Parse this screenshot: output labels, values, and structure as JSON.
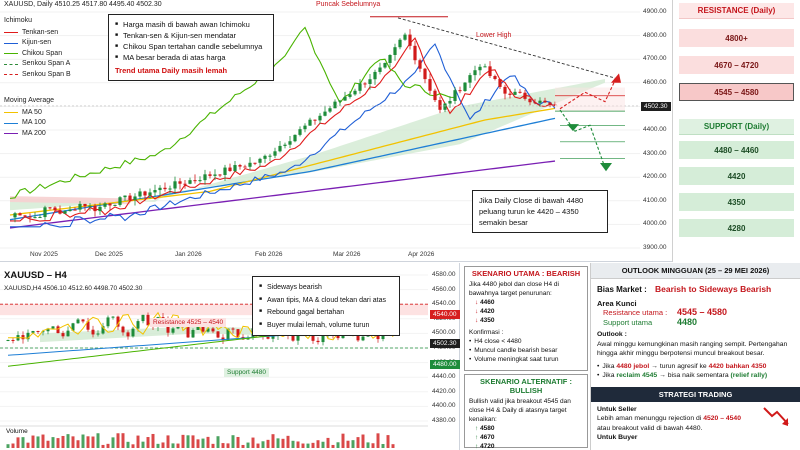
{
  "daily": {
    "header": "XAUUSD, Daily  4510.25  4517.80  4495.40  4502.30",
    "legend_ichimoku_title": "Ichimoku",
    "legend_ichimoku": [
      {
        "label": "Tenkan-sen",
        "color": "#e01b1b",
        "dash": false
      },
      {
        "label": "Kijun-sen",
        "color": "#1f5fd6",
        "dash": false
      },
      {
        "label": "Chikou Span",
        "color": "#49b300",
        "dash": false
      },
      {
        "label": "Senkou Span A",
        "color": "#2e8b3a",
        "dash": true
      },
      {
        "label": "Senkou Span B",
        "color": "#d61f1f",
        "dash": true
      }
    ],
    "legend_ma_title": "Moving Average",
    "legend_ma": [
      {
        "label": "MA 50",
        "color": "#f2c200",
        "dash": false
      },
      {
        "label": "MA 100",
        "color": "#1e7fd6",
        "dash": false
      },
      {
        "label": "MA 200",
        "color": "#7a1fb3",
        "dash": false
      }
    ],
    "notes": [
      "Harga masih di bawah awan Ichimoku",
      "Tenkan-sen & Kijun-sen mendatar",
      "Chikou Span tertahan candle sebelumnya",
      "MA besar berada di atas harga"
    ],
    "notes_trend": "Trend utama Daily masih lemah",
    "label_peak": "Puncak Sebelumnya",
    "label_lower_high": "Lower High",
    "warning": [
      "Jika Daily Close di bawah 4480",
      "peluang turun ke 4420 – 4350",
      "semakin besar"
    ],
    "y_ticks": [
      "4900.00",
      "4800.00",
      "4700.00",
      "4600.00",
      "4500.00",
      "4400.00",
      "4300.00",
      "4200.00",
      "4100.00",
      "4000.00",
      "3900.00"
    ],
    "x_ticks": [
      "Nov 2025",
      "Dec 2025",
      "Jan 2026",
      "Feb 2026",
      "Mar 2026",
      "Apr 2026"
    ],
    "price_tag": "4502.30"
  },
  "levels": {
    "resistance_title": "RESISTANCE (Daily)",
    "resistance": [
      "4800+",
      "4670 – 4720",
      "4545 – 4580"
    ],
    "support_title": "SUPPORT (Daily)",
    "support": [
      "4480 – 4460",
      "4420",
      "4350",
      "4280"
    ]
  },
  "h4": {
    "title": "XAUUSD – H4",
    "header": "XAUUSD,H4  4506.10  4512.60  4498.70  4502.30",
    "label_resistance": "Resistance 4525 – 4540",
    "label_support": "Support 4480",
    "notes": [
      "Sideways bearish",
      "Awan tipis, MA & cloud tekan dari atas",
      "Rebound gagal bertahan",
      "Buyer mulai lemah, volume turun"
    ],
    "y_ticks": [
      "4580.00",
      "4560.00",
      "4540.00",
      "4520.00",
      "4500.00",
      "4480.00",
      "4460.00",
      "4440.00",
      "4420.00",
      "4400.00",
      "4380.00"
    ],
    "tag_4540": "4540.00",
    "tag_price": "4502.30",
    "tag_4480": "4480.00",
    "volume_label": "Volume"
  },
  "scenario_main": {
    "title": "SKENARIO UTAMA : BEARISH",
    "desc": "Jika 4480 jebol dan close H4 di bawahnya target penurunan:",
    "targets": [
      "4460",
      "4420",
      "4350"
    ],
    "confirm_title": "Konfirmasi :",
    "confirm": [
      "H4 close < 4480",
      "Muncul candle bearish besar",
      "Volume meningkat saat turun"
    ]
  },
  "scenario_alt": {
    "title": "SKENARIO ALTERNATIF : BULLISH",
    "desc": "Bullish valid jika breakout 4545 dan close H4 & Daily di atasnya target kenaikan:",
    "targets": [
      "4580",
      "4670",
      "4720"
    ]
  },
  "outlook": {
    "title": "OUTLOOK MINGGUAN (25 – 29 MEI 2026)",
    "bias_label": "Bias Market :",
    "bias_value": "Bearish to Sideways Bearish",
    "kunci_label": "Area Kunci",
    "resist_label": "Resistance utama :",
    "resist_value": "4545 – 4580",
    "support_label": "Support utama",
    "support_value": "4480",
    "outlook_label": "Outlook :",
    "outlook_text": "Awal minggu kemungkinan masih ranging sempit. Pertengahan hingga akhir minggu berpotensi muncul breakout besar.",
    "bullet1_pre": "Jika ",
    "bullet1_key": "4480 jebol",
    "bullet1_mid": " → turun agresif ke ",
    "bullet1_end": "4420 bahkan 4350",
    "bullet2_pre": "Jika ",
    "bullet2_key": "reclaim 4545",
    "bullet2_mid": " → bisa naik sementara ",
    "bullet2_end": "(relief rally)",
    "strategy_title": "STRATEGI TRADING",
    "seller_title": "Untuk Seller",
    "seller_text_pre": "Lebih aman menunggu rejection di ",
    "seller_zone": "4520 – 4540",
    "seller_text_post": " atau breakout valid di bawah 4480.",
    "buyer_title": "Untuk Buyer"
  },
  "colors": {
    "bear": "#d11a1a",
    "bull": "#1e8c3a",
    "cloud_green": "#cfe8cf",
    "cloud_red": "#f6d0d0"
  }
}
